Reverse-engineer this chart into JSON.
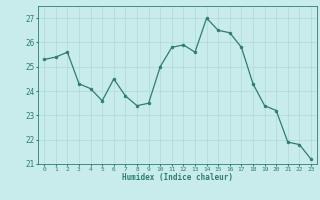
{
  "x": [
    0,
    1,
    2,
    3,
    4,
    5,
    6,
    7,
    8,
    9,
    10,
    11,
    12,
    13,
    14,
    15,
    16,
    17,
    18,
    19,
    20,
    21,
    22,
    23
  ],
  "y": [
    25.3,
    25.4,
    25.6,
    24.3,
    24.1,
    23.6,
    24.5,
    23.8,
    23.4,
    23.5,
    25.0,
    25.8,
    25.9,
    25.6,
    27.0,
    26.5,
    26.4,
    25.8,
    24.3,
    23.4,
    23.2,
    21.9,
    21.8,
    21.2
  ],
  "line_color": "#2e7d6e",
  "marker_color": "#2e7d6e",
  "bg_color": "#c8ecec",
  "grid_color": "#b0d8d8",
  "axis_color": "#2e7d6e",
  "xlabel": "Humidex (Indice chaleur)",
  "ylim": [
    21,
    27.5
  ],
  "yticks": [
    21,
    22,
    23,
    24,
    25,
    26,
    27
  ],
  "xtick_labels": [
    "0",
    "1",
    "2",
    "3",
    "4",
    "5",
    "6",
    "7",
    "8",
    "9",
    "10",
    "11",
    "12",
    "13",
    "14",
    "15",
    "16",
    "17",
    "18",
    "19",
    "20",
    "21",
    "22",
    "23"
  ]
}
